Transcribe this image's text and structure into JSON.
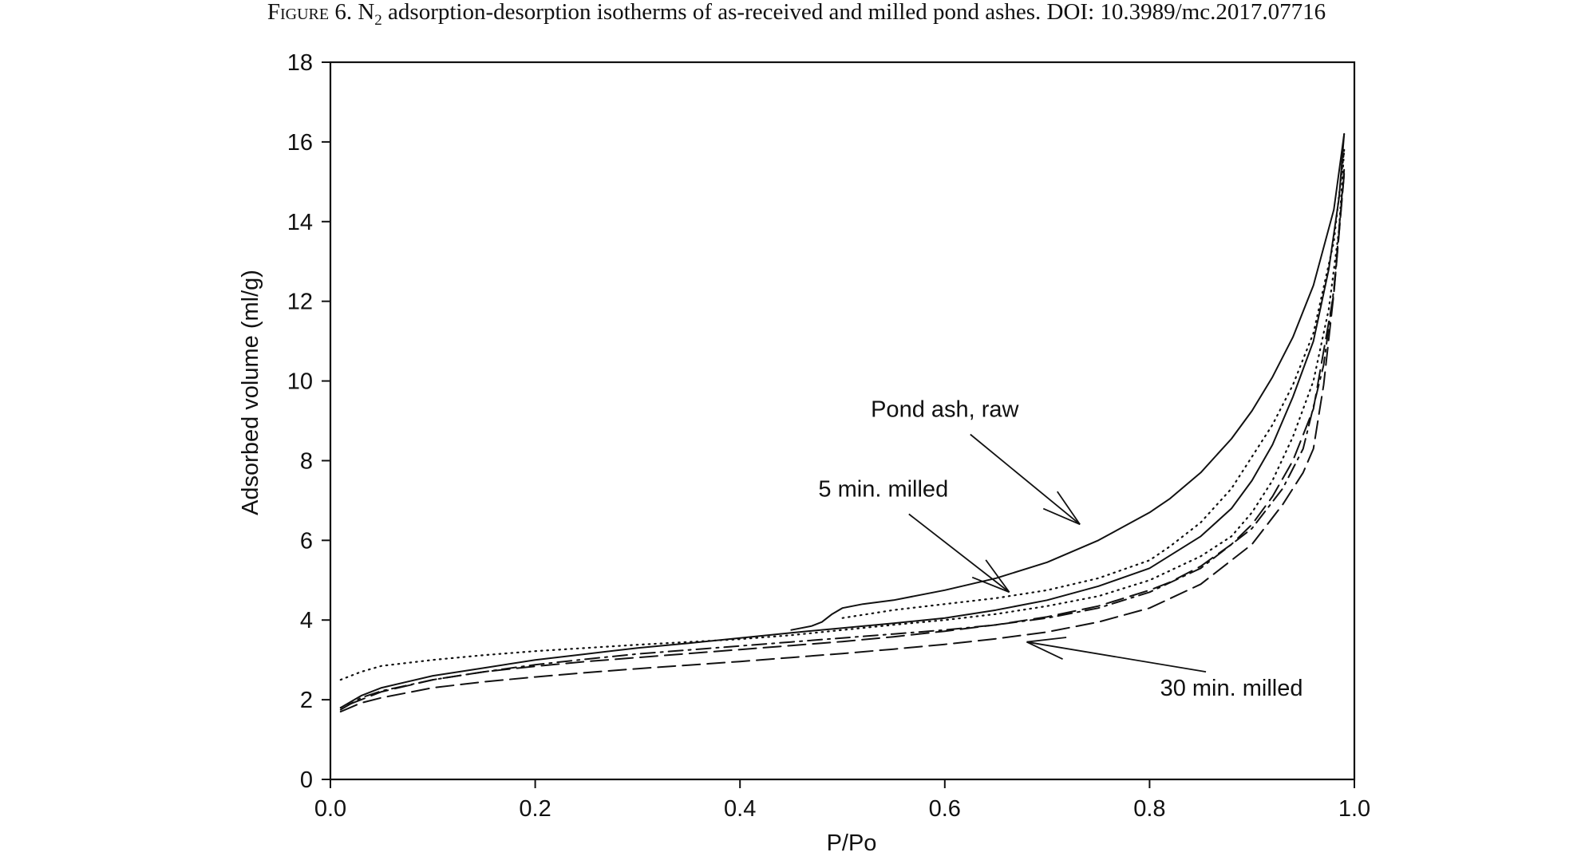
{
  "caption": {
    "label": "Figure 6.",
    "text_prefix": " N",
    "subscript": "2",
    "text_suffix": " adsorption-desorption isotherms of as-received and milled pond ashes.",
    "doi": " DOI: 10.3989/mc.2017.07716"
  },
  "chart_data": {
    "type": "line",
    "title": "",
    "xlabel": "P/Po",
    "ylabel": "Adsorbed volume (ml/g)",
    "xlim": [
      0,
      1
    ],
    "ylim": [
      0,
      18
    ],
    "xticks": [
      "0.0",
      "0.2",
      "0.4",
      "0.6",
      "0.8",
      "1.0"
    ],
    "yticks": [
      "0",
      "2",
      "4",
      "6",
      "8",
      "10",
      "12",
      "14",
      "16",
      "18"
    ],
    "grid": false,
    "legend": "none",
    "series": [
      {
        "style": "solid",
        "x": [
          0.01,
          0.03,
          0.05,
          0.1,
          0.15,
          0.2,
          0.25,
          0.3,
          0.35,
          0.4,
          0.45,
          0.5,
          0.55,
          0.6,
          0.65,
          0.7,
          0.75,
          0.8,
          0.85,
          0.88,
          0.9,
          0.92,
          0.94,
          0.96,
          0.975,
          0.985,
          0.99
        ],
        "y": [
          1.8,
          2.1,
          2.3,
          2.6,
          2.8,
          3.0,
          3.15,
          3.3,
          3.42,
          3.55,
          3.68,
          3.8,
          3.92,
          4.05,
          4.25,
          4.5,
          4.85,
          5.3,
          6.1,
          6.8,
          7.5,
          8.4,
          9.6,
          11.0,
          12.8,
          14.6,
          16.2
        ]
      },
      {
        "style": "solid",
        "x": [
          0.99,
          0.98,
          0.96,
          0.94,
          0.92,
          0.9,
          0.88,
          0.85,
          0.82,
          0.8,
          0.75,
          0.7,
          0.65,
          0.6,
          0.55,
          0.52,
          0.5,
          0.49,
          0.48,
          0.47,
          0.45
        ],
        "y": [
          16.2,
          14.3,
          12.4,
          11.1,
          10.1,
          9.25,
          8.55,
          7.7,
          7.05,
          6.7,
          6.0,
          5.45,
          5.05,
          4.75,
          4.5,
          4.4,
          4.3,
          4.15,
          3.95,
          3.85,
          3.75
        ]
      },
      {
        "style": "dotted",
        "x": [
          0.01,
          0.03,
          0.05,
          0.1,
          0.15,
          0.2,
          0.25,
          0.3,
          0.35,
          0.4,
          0.45,
          0.5,
          0.55,
          0.6,
          0.65,
          0.7,
          0.75,
          0.8,
          0.85,
          0.88,
          0.9,
          0.92,
          0.94,
          0.96,
          0.975,
          0.985,
          0.99
        ],
        "y": [
          2.5,
          2.7,
          2.85,
          3.0,
          3.12,
          3.22,
          3.3,
          3.38,
          3.45,
          3.52,
          3.62,
          3.75,
          3.88,
          4.0,
          4.15,
          4.35,
          4.6,
          5.0,
          5.6,
          6.1,
          6.7,
          7.5,
          8.6,
          10.0,
          11.8,
          13.8,
          15.8
        ]
      },
      {
        "style": "dotted",
        "x": [
          0.99,
          0.98,
          0.96,
          0.94,
          0.92,
          0.9,
          0.88,
          0.85,
          0.82,
          0.8,
          0.75,
          0.7,
          0.65,
          0.6,
          0.55,
          0.5
        ],
        "y": [
          15.8,
          13.5,
          11.2,
          9.9,
          8.9,
          8.1,
          7.3,
          6.45,
          5.85,
          5.5,
          5.05,
          4.75,
          4.55,
          4.4,
          4.25,
          4.05
        ]
      },
      {
        "style": "dash-dot",
        "x": [
          0.01,
          0.03,
          0.05,
          0.1,
          0.15,
          0.2,
          0.25,
          0.3,
          0.35,
          0.4,
          0.45,
          0.5,
          0.55,
          0.6,
          0.65,
          0.7,
          0.75,
          0.8,
          0.85,
          0.9,
          0.93,
          0.95,
          0.97,
          0.98,
          0.99
        ],
        "y": [
          1.75,
          2.05,
          2.22,
          2.5,
          2.7,
          2.88,
          3.02,
          3.15,
          3.25,
          3.35,
          3.45,
          3.55,
          3.65,
          3.75,
          3.88,
          4.05,
          4.3,
          4.7,
          5.3,
          6.3,
          7.3,
          8.3,
          10.4,
          12.3,
          15.3
        ]
      },
      {
        "style": "dashed",
        "x": [
          0.01,
          0.03,
          0.05,
          0.1,
          0.15,
          0.2,
          0.25,
          0.3,
          0.35,
          0.4,
          0.45,
          0.5,
          0.55,
          0.6,
          0.65,
          0.7,
          0.75,
          0.8,
          0.85,
          0.9,
          0.93,
          0.95,
          0.96,
          0.97,
          0.98,
          0.99
        ],
        "y": [
          1.7,
          1.92,
          2.05,
          2.3,
          2.45,
          2.57,
          2.68,
          2.78,
          2.87,
          2.96,
          3.06,
          3.16,
          3.27,
          3.39,
          3.53,
          3.7,
          3.95,
          4.3,
          4.9,
          5.9,
          6.9,
          7.7,
          8.3,
          9.9,
          12.2,
          15.2
        ]
      },
      {
        "style": "dashed",
        "x": [
          0.99,
          0.98,
          0.96,
          0.94,
          0.92,
          0.9,
          0.88,
          0.85,
          0.82,
          0.8,
          0.75,
          0.7,
          0.65,
          0.6,
          0.55,
          0.5,
          0.45,
          0.4,
          0.35,
          0.3,
          0.25,
          0.2,
          0.15,
          0.1,
          0.05,
          0.03,
          0.01
        ],
        "y": [
          15.2,
          12.2,
          9.3,
          8.0,
          7.1,
          6.4,
          5.9,
          5.35,
          4.95,
          4.75,
          4.35,
          4.08,
          3.88,
          3.72,
          3.58,
          3.46,
          3.36,
          3.26,
          3.16,
          3.06,
          2.96,
          2.84,
          2.7,
          2.5,
          2.2,
          2.0,
          1.8
        ]
      }
    ],
    "annotations": [
      {
        "text": "Pond ash, raw",
        "x": 0.6,
        "y": 9.1,
        "arrow_x": 0.732,
        "arrow_y": 6.4
      },
      {
        "text": "5 min. milled",
        "x": 0.54,
        "y": 7.1,
        "arrow_x": 0.663,
        "arrow_y": 4.7
      },
      {
        "text": "30 min. milled",
        "x": 0.88,
        "y": 2.1,
        "arrow_x": 0.68,
        "arrow_y": 3.45
      }
    ]
  }
}
